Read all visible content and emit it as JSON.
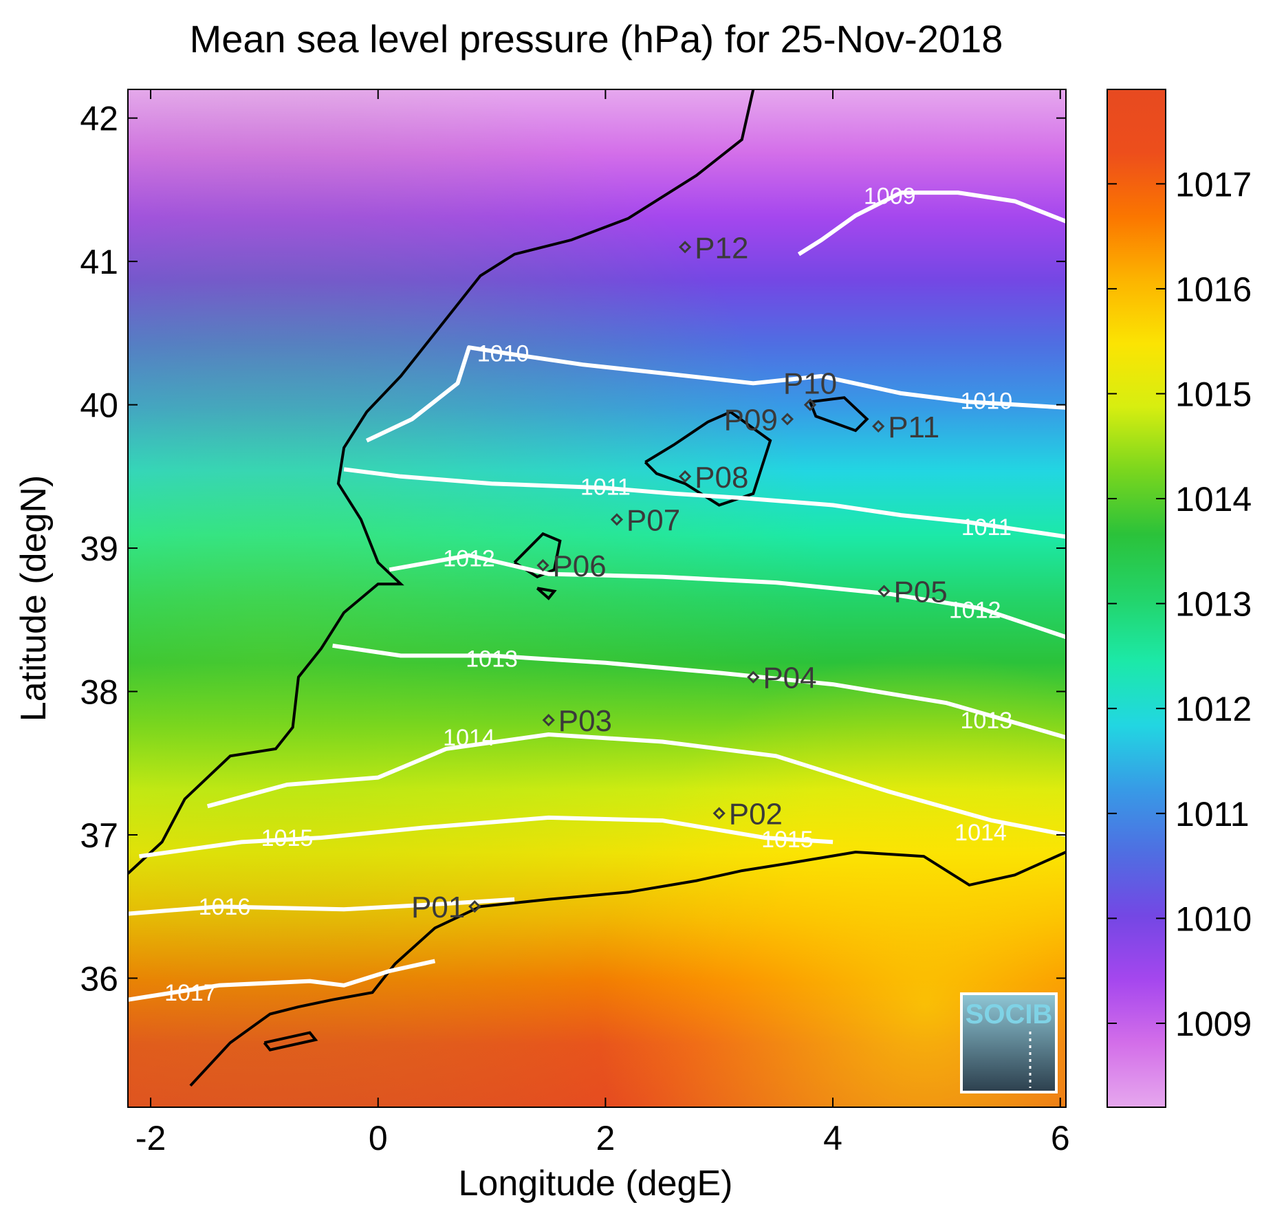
{
  "title": "Mean sea level pressure (hPa) for 25-Nov-2018",
  "xlabel": "Longitude (degE)",
  "ylabel": "Latitude (degN)",
  "xlim": [
    -2.2,
    6.05
  ],
  "ylim": [
    35.1,
    42.2
  ],
  "xticks": [
    -2,
    0,
    2,
    4,
    6
  ],
  "yticks": [
    36,
    37,
    38,
    39,
    40,
    41,
    42
  ],
  "colorbar": {
    "range": [
      1008.2,
      1017.9
    ],
    "ticks": [
      1009,
      1010,
      1011,
      1012,
      1013,
      1014,
      1015,
      1016,
      1017
    ],
    "colormap": [
      "#e6a8ee",
      "#d36ee9",
      "#a547ee",
      "#7447e4",
      "#4f6ee2",
      "#379be6",
      "#22d6e2",
      "#1ce9a8",
      "#23d46a",
      "#2bc23a",
      "#7ad61e",
      "#d7ee10",
      "#fbe403",
      "#fcb400",
      "#fb7600",
      "#ed4e1c",
      "#e74a20"
    ]
  },
  "logo": {
    "text": "SOCIB"
  },
  "isobars": [
    {
      "value": 1009,
      "label": "1009",
      "points": [
        [
          3.7,
          41.05
        ],
        [
          3.9,
          41.15
        ],
        [
          4.2,
          41.32
        ],
        [
          4.6,
          41.48
        ],
        [
          5.1,
          41.48
        ],
        [
          5.6,
          41.42
        ],
        [
          6.05,
          41.28
        ]
      ],
      "labels": [
        [
          4.5,
          41.46
        ]
      ]
    },
    {
      "value": 1010,
      "label": "1010",
      "points": [
        [
          -0.1,
          39.75
        ],
        [
          0.3,
          39.9
        ],
        [
          0.7,
          40.15
        ],
        [
          0.8,
          40.4
        ],
        [
          1.2,
          40.35
        ],
        [
          1.8,
          40.28
        ],
        [
          2.5,
          40.22
        ],
        [
          3.3,
          40.15
        ],
        [
          3.9,
          40.2
        ],
        [
          4.6,
          40.08
        ],
        [
          5.2,
          40.02
        ],
        [
          6.05,
          39.98
        ]
      ],
      "labels": [
        [
          1.1,
          40.36
        ],
        [
          5.35,
          40.03
        ]
      ]
    },
    {
      "value": 1011,
      "label": "1011",
      "points": [
        [
          -0.3,
          39.55
        ],
        [
          0.2,
          39.5
        ],
        [
          1.0,
          39.45
        ],
        [
          2.0,
          39.42
        ],
        [
          2.6,
          39.38
        ],
        [
          3.2,
          39.35
        ],
        [
          4.0,
          39.3
        ],
        [
          4.6,
          39.23
        ],
        [
          5.2,
          39.18
        ],
        [
          6.05,
          39.08
        ]
      ],
      "labels": [
        [
          2.0,
          39.43
        ],
        [
          5.35,
          39.15
        ]
      ]
    },
    {
      "value": 1012,
      "label": "1012",
      "points": [
        [
          0.1,
          38.85
        ],
        [
          0.8,
          38.95
        ],
        [
          1.5,
          38.82
        ],
        [
          2.5,
          38.8
        ],
        [
          3.5,
          38.76
        ],
        [
          4.5,
          38.68
        ],
        [
          5.3,
          38.58
        ],
        [
          6.05,
          38.38
        ]
      ],
      "labels": [
        [
          0.8,
          38.93
        ],
        [
          5.25,
          38.57
        ]
      ]
    },
    {
      "value": 1013,
      "label": "1013",
      "points": [
        [
          -0.4,
          38.32
        ],
        [
          0.2,
          38.25
        ],
        [
          1.0,
          38.25
        ],
        [
          2.0,
          38.2
        ],
        [
          3.0,
          38.13
        ],
        [
          4.0,
          38.05
        ],
        [
          5.0,
          37.92
        ],
        [
          6.05,
          37.68
        ]
      ],
      "labels": [
        [
          1.0,
          38.23
        ],
        [
          5.35,
          37.8
        ]
      ]
    },
    {
      "value": 1014,
      "label": "1014",
      "points": [
        [
          -1.5,
          37.2
        ],
        [
          -0.8,
          37.35
        ],
        [
          0.0,
          37.4
        ],
        [
          0.6,
          37.6
        ],
        [
          1.5,
          37.7
        ],
        [
          2.5,
          37.65
        ],
        [
          3.5,
          37.55
        ],
        [
          4.5,
          37.3
        ],
        [
          5.4,
          37.1
        ],
        [
          6.05,
          37.0
        ]
      ],
      "labels": [
        [
          0.8,
          37.68
        ],
        [
          5.3,
          37.02
        ]
      ]
    },
    {
      "value": 1015,
      "label": "1015",
      "points": [
        [
          -2.1,
          36.85
        ],
        [
          -1.2,
          36.95
        ],
        [
          -0.5,
          36.98
        ],
        [
          0.4,
          37.05
        ],
        [
          1.5,
          37.12
        ],
        [
          2.5,
          37.1
        ],
        [
          3.4,
          36.98
        ],
        [
          4.0,
          36.95
        ]
      ],
      "labels": [
        [
          -0.8,
          36.98
        ],
        [
          3.6,
          36.97
        ]
      ]
    },
    {
      "value": 1016,
      "label": "1016",
      "points": [
        [
          -2.2,
          36.45
        ],
        [
          -1.4,
          36.5
        ],
        [
          -0.3,
          36.48
        ],
        [
          0.6,
          36.52
        ],
        [
          1.2,
          36.55
        ]
      ],
      "labels": [
        [
          -1.35,
          36.5
        ]
      ]
    },
    {
      "value": 1017,
      "label": "1017",
      "points": [
        [
          -2.2,
          35.85
        ],
        [
          -1.4,
          35.95
        ],
        [
          -0.6,
          35.98
        ],
        [
          -0.3,
          35.95
        ],
        [
          0.1,
          36.05
        ],
        [
          0.5,
          36.12
        ]
      ],
      "labels": [
        [
          -1.65,
          35.9
        ]
      ]
    }
  ],
  "stations": [
    {
      "name": "P01",
      "lon": 0.85,
      "lat": 36.5,
      "side": "left"
    },
    {
      "name": "P02",
      "lon": 3.0,
      "lat": 37.15,
      "side": "right"
    },
    {
      "name": "P03",
      "lon": 1.5,
      "lat": 37.8,
      "side": "right"
    },
    {
      "name": "P04",
      "lon": 3.3,
      "lat": 38.1,
      "side": "right"
    },
    {
      "name": "P05",
      "lon": 4.45,
      "lat": 38.7,
      "side": "right"
    },
    {
      "name": "P06",
      "lon": 1.45,
      "lat": 38.88,
      "side": "right"
    },
    {
      "name": "P07",
      "lon": 2.1,
      "lat": 39.2,
      "side": "right"
    },
    {
      "name": "P08",
      "lon": 2.7,
      "lat": 39.5,
      "side": "right"
    },
    {
      "name": "P09",
      "lon": 3.6,
      "lat": 39.9,
      "side": "left"
    },
    {
      "name": "P10",
      "lon": 3.8,
      "lat": 40.0,
      "side": "above"
    },
    {
      "name": "P11",
      "lon": 4.4,
      "lat": 39.85,
      "side": "right"
    },
    {
      "name": "P12",
      "lon": 2.7,
      "lat": 41.1,
      "side": "right"
    }
  ]
}
